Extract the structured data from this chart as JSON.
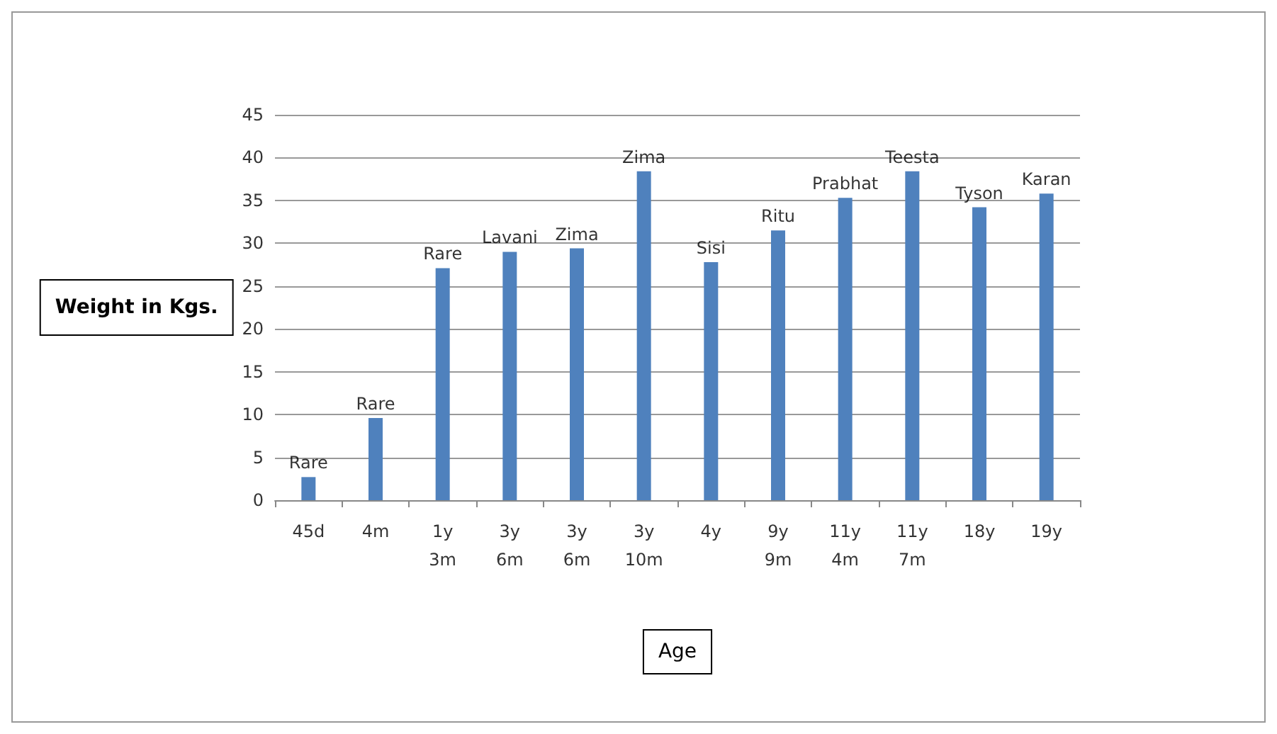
{
  "chart_data": {
    "type": "bar",
    "xlabel": "Age",
    "ylabel": "Weight in Kgs.",
    "categories": [
      "45d",
      "4m",
      "1y 3m",
      "3y 6m",
      "3y 6m",
      "3y 10m",
      "4y",
      "9y 9m",
      "11y 4m",
      "11y 7m",
      "18y",
      "19y"
    ],
    "values": [
      2.7,
      9.6,
      27.1,
      29.0,
      29.4,
      38.4,
      27.8,
      31.5,
      35.3,
      38.4,
      34.2,
      35.8
    ],
    "color": "#4f81bd",
    "ylim": [
      0,
      45
    ],
    "yticks": [
      0,
      5,
      10,
      15,
      20,
      25,
      30,
      35,
      40,
      45
    ],
    "grid": "y",
    "annotations": [
      {
        "text": "Rare",
        "x": "45d",
        "y": 2.7
      },
      {
        "text": "Rare",
        "x": "4m",
        "y": 9.6
      },
      {
        "text": "Rare",
        "x": "1y 3m",
        "y": 27.1
      },
      {
        "text": "Lavani",
        "x": "3y 6m",
        "y": 29.0
      },
      {
        "text": "Zima",
        "x": "3y 6m",
        "y": 29.4
      },
      {
        "text": "Zima",
        "x": "3y 10m",
        "y": 38.4
      },
      {
        "text": "Sisi",
        "x": "4y",
        "y": 27.8
      },
      {
        "text": "Ritu",
        "x": "9y 9m",
        "y": 31.5
      },
      {
        "text": "Prabhat",
        "x": "11y 4m",
        "y": 35.3
      },
      {
        "text": "Teesta",
        "x": "11y 7m",
        "y": 38.4
      },
      {
        "text": "Tyson",
        "x": "18y",
        "y": 34.2
      },
      {
        "text": "Karan",
        "x": "19y",
        "y": 35.8
      }
    ]
  }
}
